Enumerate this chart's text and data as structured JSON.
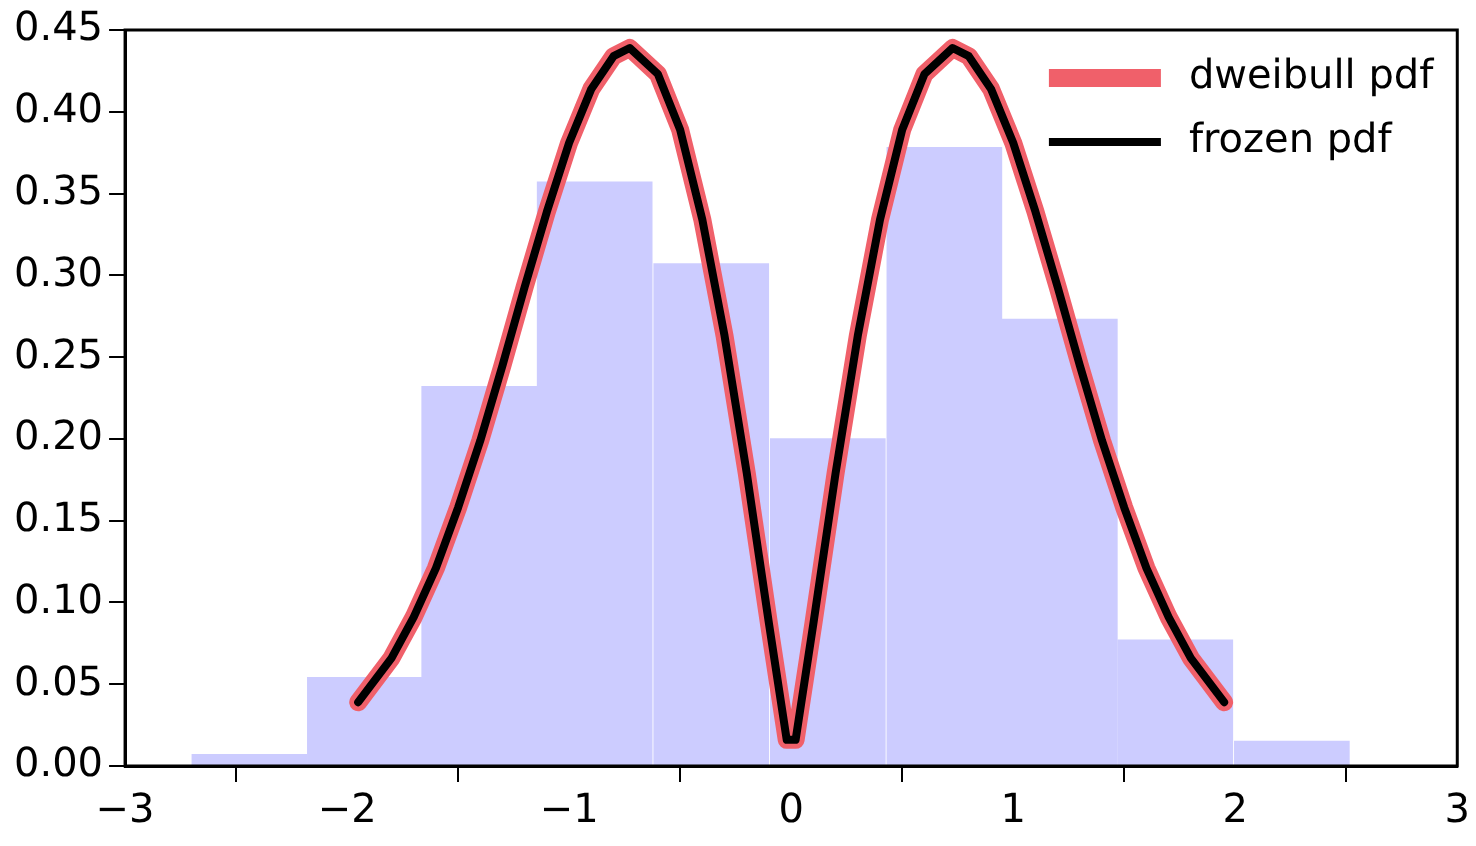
{
  "chart_data": {
    "type": "histogram",
    "bins": [
      -2.7,
      -2.18,
      -1.66,
      -1.15,
      -0.62,
      -0.1,
      0.43,
      0.95,
      1.47,
      1.99,
      2.52
    ],
    "values": [
      0.007,
      0.054,
      0.232,
      0.357,
      0.307,
      0.2,
      0.378,
      0.273,
      0.077,
      0.015
    ],
    "color": "#ccccff",
    "series": [
      {
        "type": "line",
        "name": "dweibull pdf",
        "color": "#f0606a",
        "x": [
          -1.95,
          -1.8,
          -1.7,
          -1.6,
          -1.5,
          -1.4,
          -1.3,
          -1.2,
          -1.1,
          -1.0,
          -0.9,
          -0.8,
          -0.727,
          -0.6,
          -0.5,
          -0.4,
          -0.3,
          -0.2,
          -0.1,
          -0.02,
          0.02,
          0.1,
          0.2,
          0.3,
          0.4,
          0.5,
          0.6,
          0.727,
          0.8,
          0.9,
          1.0,
          1.1,
          1.2,
          1.3,
          1.4,
          1.5,
          1.6,
          1.7,
          1.8,
          1.95
        ],
        "values": [
          0.039,
          0.066,
          0.091,
          0.121,
          0.158,
          0.199,
          0.245,
          0.293,
          0.339,
          0.381,
          0.414,
          0.434,
          0.439,
          0.423,
          0.389,
          0.334,
          0.263,
          0.179,
          0.087,
          0.016,
          0.016,
          0.087,
          0.179,
          0.263,
          0.334,
          0.389,
          0.423,
          0.439,
          0.434,
          0.414,
          0.381,
          0.339,
          0.293,
          0.245,
          0.199,
          0.158,
          0.121,
          0.091,
          0.066,
          0.039
        ]
      },
      {
        "type": "line",
        "name": "frozen pdf",
        "color": "#000000",
        "x": [
          -1.95,
          -1.8,
          -1.7,
          -1.6,
          -1.5,
          -1.4,
          -1.3,
          -1.2,
          -1.1,
          -1.0,
          -0.9,
          -0.8,
          -0.727,
          -0.6,
          -0.5,
          -0.4,
          -0.3,
          -0.2,
          -0.1,
          -0.02,
          0.02,
          0.1,
          0.2,
          0.3,
          0.4,
          0.5,
          0.6,
          0.727,
          0.8,
          0.9,
          1.0,
          1.1,
          1.2,
          1.3,
          1.4,
          1.5,
          1.6,
          1.7,
          1.8,
          1.95
        ],
        "values": [
          0.039,
          0.066,
          0.091,
          0.121,
          0.158,
          0.199,
          0.245,
          0.293,
          0.339,
          0.381,
          0.414,
          0.434,
          0.439,
          0.423,
          0.389,
          0.334,
          0.263,
          0.179,
          0.087,
          0.016,
          0.016,
          0.087,
          0.179,
          0.263,
          0.334,
          0.389,
          0.423,
          0.439,
          0.434,
          0.414,
          0.381,
          0.339,
          0.293,
          0.245,
          0.199,
          0.158,
          0.121,
          0.091,
          0.066,
          0.039
        ]
      }
    ],
    "xlim": [
      -3,
      3
    ],
    "xticks": [
      {
        "value": -3,
        "label": "−3"
      },
      {
        "value": -2,
        "label": "−2"
      },
      {
        "value": -1,
        "label": "−1"
      },
      0,
      1,
      2,
      3
    ],
    "ylim": [
      0,
      0.45
    ],
    "yticks": [
      {
        "value": 0,
        "label": "0.00"
      },
      0.05,
      {
        "value": 0.1,
        "label": "0.10"
      },
      0.15,
      {
        "value": 0.2,
        "label": "0.20"
      },
      0.25,
      {
        "value": 0.3,
        "label": "0.30"
      },
      0.35,
      {
        "value": 0.4,
        "label": "0.40"
      },
      0.45
    ],
    "grid": false,
    "legend": "top right",
    "line_style": "solid",
    "marker": "none"
  }
}
